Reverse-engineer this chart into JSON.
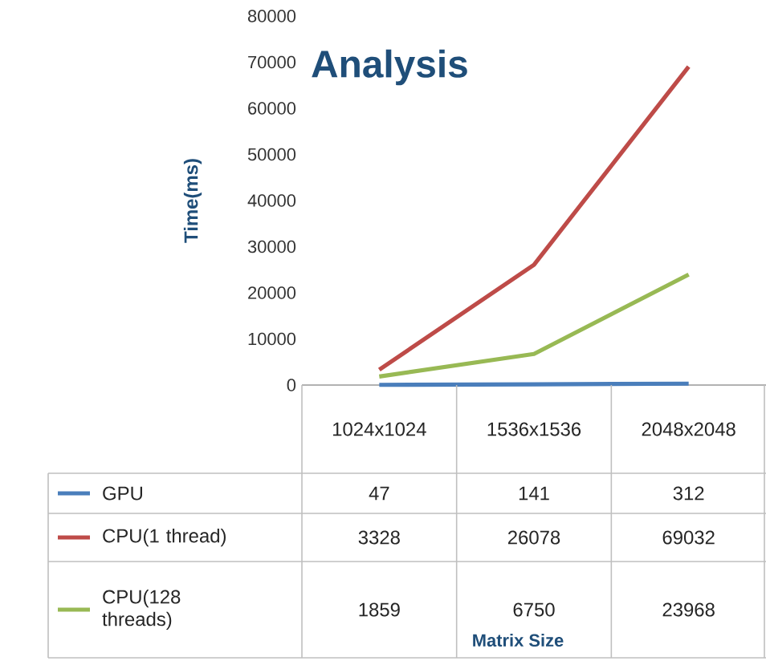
{
  "chart_data": {
    "type": "line",
    "title": "Analysis",
    "annotations": [
      "Matrix Size"
    ],
    "ylabel": "Time(ms)",
    "categories": [
      "1024x1024",
      "1536x1536",
      "2048x2048"
    ],
    "series": [
      {
        "name": "GPU",
        "color": "#4a7ebb",
        "values": [
          47,
          141,
          312
        ]
      },
      {
        "name": "CPU(1 thread)",
        "color": "#be4b48",
        "values": [
          3328,
          26078,
          69032
        ]
      },
      {
        "name": "CPU(128 threads)",
        "color": "#98b954",
        "values": [
          1859,
          6750,
          23968
        ]
      }
    ],
    "ylim": [
      0,
      80000
    ],
    "yticks": [
      0,
      10000,
      20000,
      30000,
      40000,
      50000,
      60000,
      70000,
      80000
    ],
    "data_labels": true,
    "legend": "bottom",
    "marker": "none",
    "line_style": "solid",
    "grid": false
  }
}
